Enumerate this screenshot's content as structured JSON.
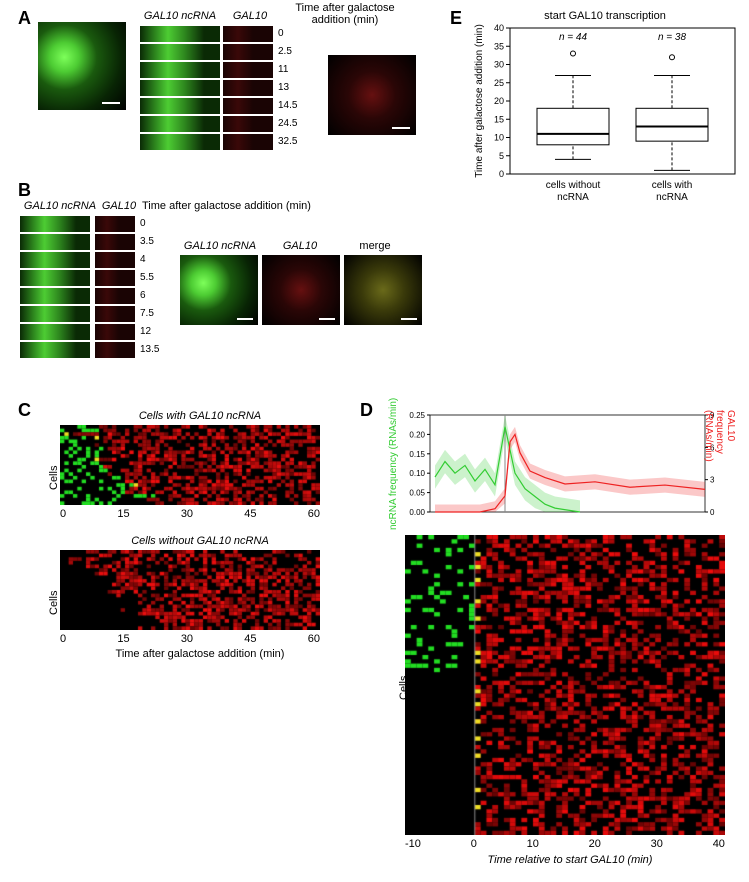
{
  "panels": {
    "A": "A",
    "B": "B",
    "C": "C",
    "D": "D",
    "E": "E"
  },
  "A": {
    "hdr_ncRNA": "GAL10 ncRNA",
    "hdr_GAL10": "GAL10",
    "hdr_time": "Time after galactose addition (min)",
    "times": [
      "0",
      "2.5",
      "11",
      "13",
      "14.5",
      "24.5",
      "32.5"
    ]
  },
  "B": {
    "hdr_ncRNA": "GAL10 ncRNA",
    "hdr_GAL10": "GAL10",
    "hdr_time": "Time after galactose addition (min)",
    "hdr_merge": "merge",
    "times": [
      "0",
      "3.5",
      "4",
      "5.5",
      "6",
      "7.5",
      "12",
      "13.5"
    ]
  },
  "C": {
    "title_with": "Cells with GAL10 ncRNA",
    "title_without": "Cells without GAL10 ncRNA",
    "xlabel": "Time after galactose addition (min)",
    "ylabel": "Cells",
    "xticks": [
      "0",
      "15",
      "30",
      "45",
      "60"
    ]
  },
  "D": {
    "ylabel_left": "ncRNA frequency (RNAs/min)",
    "ylabel_right": "GAL10 frequency (RNAs/min)",
    "xlabel": "Time relative to start GAL10 (min)",
    "ylabel_heat": "Cells",
    "xticks": [
      "-10",
      "0",
      "10",
      "20",
      "30",
      "40"
    ],
    "left_ticks": [
      "0.00",
      "0.05",
      "0.10",
      "0.15",
      "0.20",
      "0.25"
    ],
    "right_ticks": [
      "0",
      "3",
      "6",
      "9"
    ],
    "ncRNA_color": "#33cc33",
    "gal10_color": "#ee2222"
  },
  "E": {
    "title": "start GAL10 transcription",
    "ylabel": "Time after galactose addition (min)",
    "yticks": [
      "0",
      "5",
      "10",
      "15",
      "20",
      "25",
      "30",
      "35",
      "40"
    ],
    "cat1": "cells without ncRNA",
    "cat2": "cells with ncRNA",
    "n1": "n = 44",
    "n2": "n = 38",
    "box1": {
      "q1": 8,
      "med": 11,
      "q3": 18,
      "wlo": 4,
      "whi": 27,
      "out": [
        33
      ]
    },
    "box2": {
      "q1": 9,
      "med": 13,
      "q3": 18,
      "wlo": 1,
      "whi": 27,
      "out": [
        32
      ]
    },
    "ylim": [
      0,
      40
    ]
  },
  "colors": {
    "green": "#33cc33",
    "red": "#ee2222",
    "black": "#000000",
    "white": "#ffffff"
  }
}
